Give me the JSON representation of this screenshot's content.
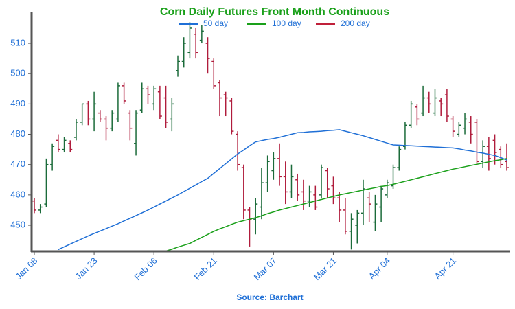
{
  "chart_data": {
    "type": "ohlc",
    "title": "Corn Daily Futures Front Month Continuous",
    "source": "Source: Barchart",
    "categories": [
      "Jan 08",
      null,
      null,
      null,
      null,
      null,
      null,
      null,
      null,
      null,
      "Jan 23",
      null,
      null,
      null,
      null,
      null,
      null,
      null,
      null,
      null,
      "Feb 06",
      null,
      null,
      null,
      null,
      null,
      null,
      null,
      null,
      null,
      "Feb 21",
      null,
      null,
      null,
      null,
      null,
      null,
      null,
      null,
      null,
      "Mar 07",
      null,
      null,
      null,
      null,
      null,
      null,
      null,
      null,
      null,
      "Mar 21",
      null,
      null,
      null,
      null,
      null,
      null,
      null,
      null,
      "Apr 04",
      null,
      null,
      null,
      null,
      null,
      null,
      null,
      null,
      null,
      null,
      "Apr 21",
      null,
      null,
      null,
      null,
      null,
      null,
      null,
      null,
      null
    ],
    "open": [
      458,
      455,
      457,
      470,
      478,
      475,
      477,
      479,
      484,
      490,
      485,
      487,
      485,
      482,
      485,
      496,
      487,
      477,
      488,
      495,
      490,
      494,
      492,
      485,
      501,
      504,
      507,
      513,
      511,
      510,
      504,
      497,
      493,
      491,
      480,
      469,
      455,
      452,
      456,
      464,
      468,
      472,
      466,
      461,
      465,
      461,
      458,
      460,
      460,
      468,
      463,
      459,
      455,
      448,
      450,
      454,
      459,
      451,
      456,
      460,
      463,
      469,
      476,
      483,
      489,
      487,
      492,
      487,
      491,
      493,
      485,
      480,
      482,
      484,
      484,
      471,
      476,
      478,
      475,
      471
    ],
    "high": [
      459,
      457,
      472,
      477,
      480,
      479,
      478,
      485,
      490,
      491,
      494,
      488,
      486,
      488,
      497,
      497,
      488,
      488,
      497,
      496,
      496,
      496,
      496,
      492,
      506,
      512,
      517,
      515,
      516,
      512,
      505,
      498,
      494,
      492,
      481,
      470,
      456,
      459,
      469,
      473,
      474,
      477,
      471,
      470,
      467,
      465,
      463,
      463,
      470,
      469,
      466,
      461,
      459,
      454,
      455,
      465,
      461,
      460,
      463,
      465,
      470,
      476,
      484,
      491,
      490,
      496,
      494,
      495,
      492,
      495,
      486,
      484,
      487,
      486,
      485,
      478,
      479,
      480,
      476,
      477
    ],
    "low": [
      454,
      454,
      456,
      468,
      474,
      474,
      474,
      478,
      483,
      483,
      481,
      484,
      478,
      481,
      484,
      490,
      478,
      473,
      487,
      490,
      488,
      485,
      482,
      481,
      499,
      502,
      505,
      505,
      510,
      500,
      495,
      486,
      486,
      480,
      468,
      452,
      443,
      447,
      452,
      461,
      465,
      463,
      457,
      459,
      458,
      455,
      456,
      455,
      459,
      459,
      457,
      451,
      447,
      442,
      444,
      450,
      451,
      448,
      451,
      459,
      462,
      468,
      475,
      482,
      483,
      486,
      487,
      486,
      486,
      484,
      479,
      479,
      480,
      477,
      470,
      469,
      468,
      470,
      469,
      468
    ],
    "close": [
      455,
      456,
      470,
      476,
      475,
      478,
      475,
      484,
      490,
      485,
      490,
      485,
      482,
      487,
      496,
      491,
      482,
      487,
      495,
      493,
      495,
      486,
      484,
      490,
      504,
      510,
      515,
      507,
      514,
      505,
      496,
      492,
      492,
      481,
      470,
      455,
      452,
      457,
      464,
      471,
      472,
      466,
      461,
      466,
      460,
      458,
      461,
      456,
      469,
      462,
      459,
      455,
      448,
      452,
      454,
      462,
      457,
      457,
      462,
      464,
      469,
      475,
      483,
      490,
      485,
      492,
      490,
      492,
      490,
      486,
      481,
      483,
      485,
      480,
      471,
      476,
      472,
      474,
      470,
      469
    ],
    "up_color": "#1b6b3a",
    "down_color": "#b01c3c",
    "series": [
      {
        "name": "50 day",
        "color": "#1f6fd6",
        "values": [
          null,
          null,
          null,
          null,
          442.0,
          442.9,
          443.8,
          444.7,
          445.6,
          446.5,
          447.3,
          448.1,
          448.9,
          449.7,
          450.5,
          451.4,
          452.3,
          453.2,
          454.1,
          455.0,
          456.0,
          457.0,
          458.0,
          459.0,
          460.0,
          461.1,
          462.2,
          463.3,
          464.4,
          465.5,
          467.1,
          468.7,
          470.3,
          471.9,
          473.5,
          474.8,
          476.2,
          477.5,
          477.9,
          478.3,
          478.6,
          479.0,
          479.5,
          480.0,
          480.5,
          480.6,
          480.8,
          480.9,
          481.0,
          481.2,
          481.3,
          481.5,
          481.0,
          480.5,
          480.0,
          479.5,
          478.9,
          478.3,
          477.7,
          477.1,
          476.5,
          476.4,
          476.3,
          476.2,
          476.1,
          476.0,
          475.9,
          475.8,
          475.7,
          475.6,
          475.5,
          475.2,
          474.8,
          474.5,
          474.1,
          473.8,
          473.4,
          473.0,
          472.3,
          471.5
        ]
      },
      {
        "name": "100 day",
        "color": "#1aa01a",
        "values": [
          null,
          null,
          null,
          null,
          null,
          null,
          null,
          null,
          null,
          null,
          null,
          null,
          null,
          null,
          null,
          null,
          null,
          null,
          null,
          null,
          null,
          null,
          441.5,
          442.1,
          442.8,
          443.4,
          444.0,
          445.0,
          446.0,
          447.0,
          448.0,
          448.8,
          449.5,
          450.3,
          451.0,
          451.5,
          452.0,
          452.5,
          453.1,
          453.8,
          454.4,
          455.0,
          455.5,
          456.0,
          456.5,
          457.0,
          457.5,
          458.0,
          458.5,
          459.0,
          459.5,
          460.0,
          460.4,
          460.8,
          461.2,
          461.6,
          462.0,
          462.4,
          462.8,
          463.1,
          463.5,
          464.0,
          464.5,
          465.0,
          465.5,
          466.0,
          466.5,
          467.0,
          467.5,
          468.0,
          468.5,
          468.9,
          469.3,
          469.7,
          470.1,
          470.5,
          470.9,
          471.3,
          471.6,
          472.0
        ]
      },
      {
        "name": "200 day",
        "color": "#c0203a",
        "values": [
          null,
          null,
          null,
          null,
          null,
          null,
          null,
          null,
          null,
          null,
          null,
          null,
          null,
          null,
          null,
          null,
          null,
          null,
          null,
          null,
          null,
          null,
          null,
          null,
          null,
          null,
          null,
          null,
          null,
          null,
          null,
          null,
          null,
          null,
          null,
          null,
          null,
          null,
          null,
          null,
          null,
          null,
          null,
          null,
          null,
          null,
          null,
          null,
          null,
          null,
          null,
          null,
          null,
          null,
          null,
          null,
          null,
          null,
          null,
          null,
          null,
          null,
          null,
          null,
          null,
          null,
          null,
          null,
          null,
          null,
          null,
          null,
          null,
          null,
          null,
          null,
          null,
          null,
          null,
          null
        ]
      }
    ],
    "ylim": [
      441.4,
      520.2
    ],
    "yticks": [
      450,
      460,
      470,
      480,
      490,
      500,
      510
    ]
  }
}
